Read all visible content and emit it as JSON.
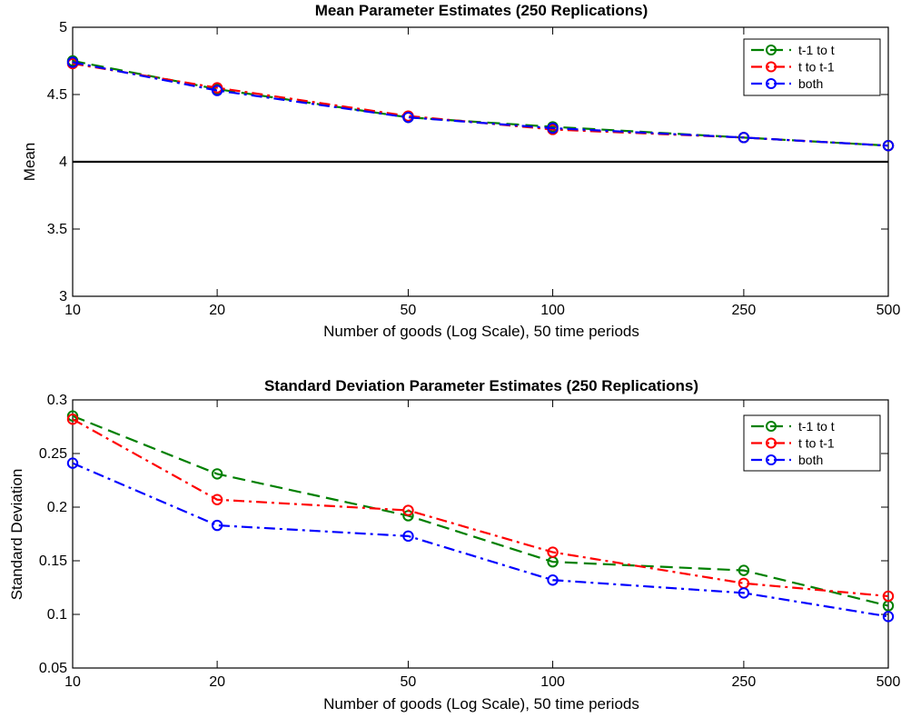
{
  "chart_data": [
    {
      "type": "line",
      "title": "Mean Parameter Estimates (250 Replications)",
      "xlabel": "Number of goods (Log Scale), 50 time periods",
      "ylabel": "Mean",
      "xscale": "log",
      "x": [
        10,
        20,
        50,
        100,
        250,
        500
      ],
      "xticks": [
        "10",
        "20",
        "50",
        "100",
        "250",
        "500"
      ],
      "ylim": [
        3,
        5
      ],
      "yticks": [
        "3",
        "3.5",
        "4",
        "4.5",
        "5"
      ],
      "reference_line": 4,
      "legend_position": "top-right",
      "grid": false,
      "series": [
        {
          "name": "t-1 to t",
          "color": "#008000",
          "dash": "dashed",
          "values": [
            4.75,
            4.54,
            4.33,
            4.26,
            4.18,
            4.12
          ]
        },
        {
          "name": "t to t-1",
          "color": "#ff0000",
          "dash": "dashdot",
          "values": [
            4.73,
            4.55,
            4.34,
            4.24,
            4.18,
            4.12
          ]
        },
        {
          "name": "both",
          "color": "#0000ff",
          "dash": "dashdot",
          "values": [
            4.74,
            4.53,
            4.33,
            4.25,
            4.18,
            4.12
          ]
        }
      ]
    },
    {
      "type": "line",
      "title": "Standard Deviation Parameter Estimates (250 Replications)",
      "xlabel": "Number of goods (Log Scale), 50 time periods",
      "ylabel": "Standard Deviation",
      "xscale": "log",
      "x": [
        10,
        20,
        50,
        100,
        250,
        500
      ],
      "xticks": [
        "10",
        "20",
        "50",
        "100",
        "250",
        "500"
      ],
      "ylim": [
        0.05,
        0.3
      ],
      "yticks": [
        "0.05",
        "0.1",
        "0.15",
        "0.2",
        "0.25",
        "0.3"
      ],
      "legend_position": "top-right",
      "grid": false,
      "series": [
        {
          "name": "t-1 to t",
          "color": "#008000",
          "dash": "dashed",
          "values": [
            0.285,
            0.231,
            0.192,
            0.149,
            0.141,
            0.108
          ]
        },
        {
          "name": "t to t-1",
          "color": "#ff0000",
          "dash": "dashdot",
          "values": [
            0.282,
            0.207,
            0.197,
            0.158,
            0.129,
            0.117
          ]
        },
        {
          "name": "both",
          "color": "#0000ff",
          "dash": "dashdot",
          "values": [
            0.241,
            0.183,
            0.173,
            0.132,
            0.12,
            0.098
          ]
        }
      ]
    }
  ]
}
